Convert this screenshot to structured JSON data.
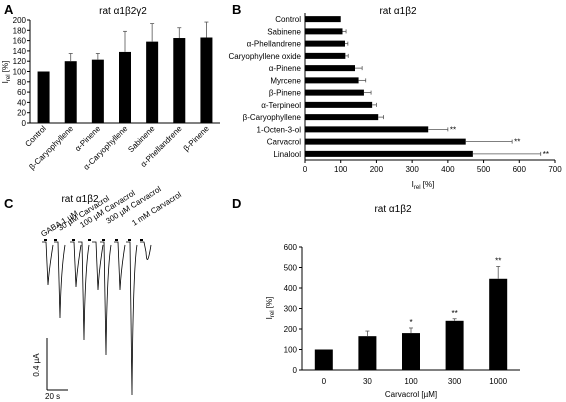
{
  "panels": {
    "A": "A",
    "B": "B",
    "C": "C",
    "D": "D"
  },
  "chart_data": [
    {
      "type": "bar",
      "panel": "A",
      "title": "rat α1β2γ2",
      "ylabel": "Irel [%]",
      "categories": [
        "Control",
        "β-Caryophyllene",
        "α-Pinene",
        "α-Caryophyllene",
        "Sabinene",
        "α-Phellandrene",
        "β-Pinene"
      ],
      "values": [
        100,
        120,
        123,
        138,
        158,
        165,
        166
      ],
      "errors": [
        0,
        15,
        12,
        40,
        35,
        20,
        30
      ],
      "ylim": [
        0,
        200
      ],
      "yticks": [
        0,
        20,
        40,
        60,
        80,
        100,
        120,
        140,
        160,
        180,
        200
      ],
      "grid": false,
      "color": "#000000"
    },
    {
      "type": "bar",
      "orientation": "horizontal",
      "panel": "B",
      "title": "rat α1β2",
      "xlabel": "Irel [%]",
      "categories": [
        "Control",
        "Sabinene",
        "α-Phellandrene",
        "Caryophyllene oxide",
        "α-Pinene",
        "Myrcene",
        "β-Pinene",
        "α-Terpineol",
        "β-Caryophyllene",
        "1-Octen-3-ol",
        "Carvacrol",
        "Linalool"
      ],
      "values": [
        100,
        105,
        112,
        113,
        140,
        150,
        165,
        188,
        205,
        345,
        450,
        470
      ],
      "errors": [
        0,
        10,
        8,
        8,
        20,
        20,
        20,
        12,
        15,
        55,
        130,
        190
      ],
      "markers": [
        "",
        "",
        "",
        "",
        "",
        "",
        "",
        "",
        "",
        "**",
        "**",
        "**"
      ],
      "xlim": [
        0,
        700
      ],
      "xticks": [
        0,
        100,
        200,
        300,
        400,
        500,
        600,
        700
      ],
      "grid": false,
      "color": "#000000"
    },
    {
      "type": "line",
      "panel": "C",
      "title": "rat α1β2",
      "labels": [
        "GABA 1 µM",
        "30 µM Carvacrol",
        "100 µM Carvacrol",
        "300 µM Carvacrol",
        "1 mM Carvacrol"
      ],
      "current_scale": "0.4 µA",
      "time_scale": "20 s"
    },
    {
      "type": "bar",
      "panel": "D",
      "title": "rat α1β2",
      "xlabel": "Carvacrol [µM]",
      "ylabel": "Irel [%]",
      "categories": [
        "0",
        "30",
        "100",
        "300",
        "1000"
      ],
      "values": [
        100,
        165,
        180,
        240,
        445
      ],
      "errors": [
        0,
        25,
        25,
        10,
        60
      ],
      "markers": [
        "",
        "",
        "*",
        "**",
        "**"
      ],
      "ylim": [
        0,
        600
      ],
      "yticks": [
        0,
        100,
        200,
        300,
        400,
        500,
        600
      ],
      "grid": false,
      "color": "#000000"
    }
  ]
}
